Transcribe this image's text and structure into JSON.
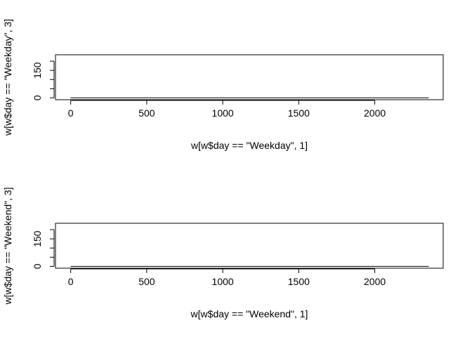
{
  "chart_data": [
    {
      "type": "line",
      "title": "",
      "xlabel": "w[w$day == \"Weekday\", 1]",
      "ylabel": "w[w$day == \"Weekday\", 3]",
      "xlim": [
        -100,
        2450
      ],
      "ylim": [
        -10,
        235
      ],
      "xticks": [
        0,
        500,
        1000,
        1500,
        2000
      ],
      "xtick_labels": [
        "0",
        "500",
        "1000",
        "1500",
        "2000"
      ],
      "yticks": [
        0,
        50,
        100,
        150,
        200
      ],
      "ytick_labels": [
        "0",
        "",
        "",
        "150",
        ""
      ],
      "grid": false,
      "series": [
        {
          "x": [
            0,
            2355
          ],
          "y": [
            0,
            0
          ]
        }
      ]
    },
    {
      "type": "line",
      "title": "",
      "xlabel": "w[w$day == \"Weekend\", 1]",
      "ylabel": "w[w$day == \"Weekend\", 3]",
      "xlim": [
        -100,
        2450
      ],
      "ylim": [
        -10,
        235
      ],
      "xticks": [
        0,
        500,
        1000,
        1500,
        2000
      ],
      "xtick_labels": [
        "0",
        "500",
        "1000",
        "1500",
        "2000"
      ],
      "yticks": [
        0,
        50,
        100,
        150,
        200
      ],
      "ytick_labels": [
        "0",
        "",
        "",
        "150",
        ""
      ],
      "grid": false,
      "series": [
        {
          "x": [
            0,
            2355
          ],
          "y": [
            0,
            0
          ]
        }
      ]
    }
  ]
}
